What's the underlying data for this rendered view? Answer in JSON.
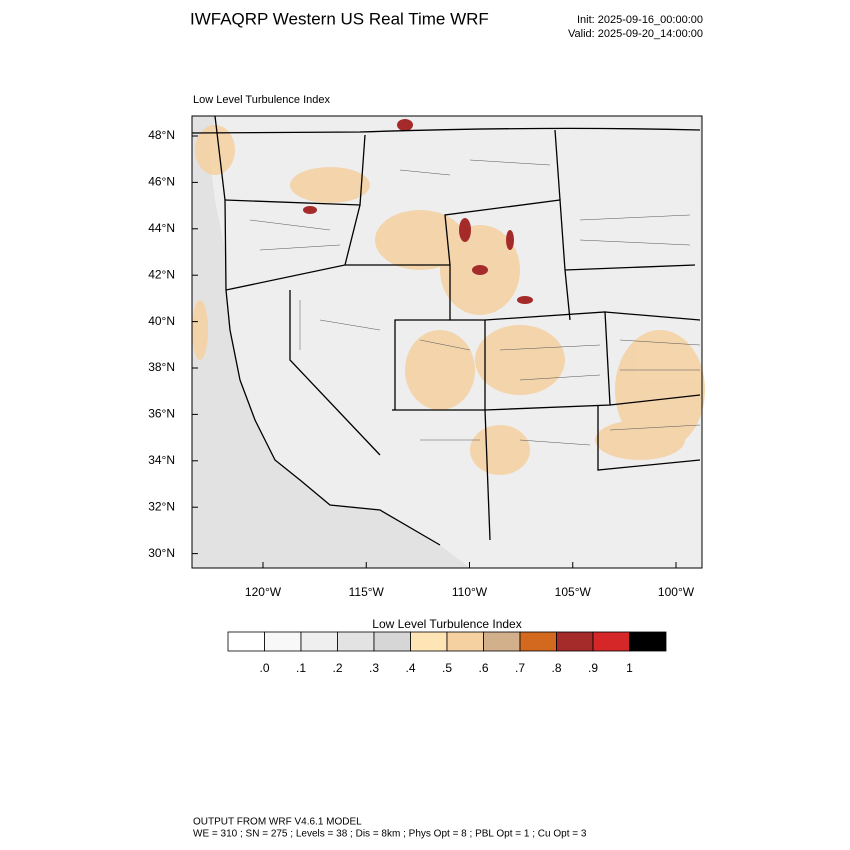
{
  "header": {
    "title": "IWFAQRP Western US Real Time WRF",
    "init": "Init: 2025-09-16_00:00:00",
    "valid": "Valid: 2025-09-20_14:00:00"
  },
  "map": {
    "title": "Low Level Turbulence Index",
    "lat_ticks": [
      {
        "value": 48,
        "label": "48°N"
      },
      {
        "value": 46,
        "label": "46°N"
      },
      {
        "value": 44,
        "label": "44°N"
      },
      {
        "value": 42,
        "label": "42°N"
      },
      {
        "value": 40,
        "label": "40°N"
      },
      {
        "value": 38,
        "label": "38°N"
      },
      {
        "value": 36,
        "label": "36°N"
      },
      {
        "value": 34,
        "label": "34°N"
      },
      {
        "value": 32,
        "label": "32°N"
      },
      {
        "value": 30,
        "label": "30°N"
      }
    ],
    "lon_ticks": [
      {
        "value": -120,
        "label": "120°W"
      },
      {
        "value": -115,
        "label": "115°W"
      },
      {
        "value": -110,
        "label": "110°W"
      },
      {
        "value": -105,
        "label": "105°W"
      },
      {
        "value": -100,
        "label": "100°W"
      }
    ]
  },
  "colorbar": {
    "title": "Low Level Turbulence Index",
    "colors": [
      "#ffffff",
      "#f8f8f8",
      "#efefef",
      "#e3e3e3",
      "#d6d6d6",
      "#ffe4b5",
      "#f5d0a0",
      "#d2b08c",
      "#d2691e",
      "#a52a2a",
      "#d62728",
      "#000000"
    ],
    "levels": [
      {
        "value": 0,
        "label": ".0"
      },
      {
        "value": 0.1,
        "label": ".1"
      },
      {
        "value": 0.2,
        "label": ".2"
      },
      {
        "value": 0.3,
        "label": ".3"
      },
      {
        "value": 0.4,
        "label": ".4"
      },
      {
        "value": 0.5,
        "label": ".5"
      },
      {
        "value": 0.6,
        "label": ".6"
      },
      {
        "value": 0.7,
        "label": ".7"
      },
      {
        "value": 0.8,
        "label": ".8"
      },
      {
        "value": 0.9,
        "label": ".9"
      },
      1
    ]
  },
  "footer": {
    "line1": "OUTPUT FROM WRF V4.6.1 MODEL",
    "line2": "WE = 310 ; SN = 275 ; Levels = 38 ; Dis = 8km ; Phys Opt = 8 ; PBL Opt = 1 ; Cu Opt = 3"
  }
}
